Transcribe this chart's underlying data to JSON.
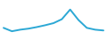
{
  "x": [
    0,
    1,
    2,
    3,
    4,
    5,
    6,
    7,
    8,
    9,
    10,
    11,
    12
  ],
  "y": [
    80.5,
    79.2,
    79.8,
    80.2,
    80.8,
    81.5,
    82.3,
    83.8,
    87.5,
    83.5,
    80.5,
    79.8,
    79.5
  ],
  "line_color": "#2ca8d5",
  "linewidth": 1.4,
  "background_color": "#ffffff",
  "ylim": [
    76,
    91
  ],
  "xlim": [
    -0.3,
    12.3
  ]
}
